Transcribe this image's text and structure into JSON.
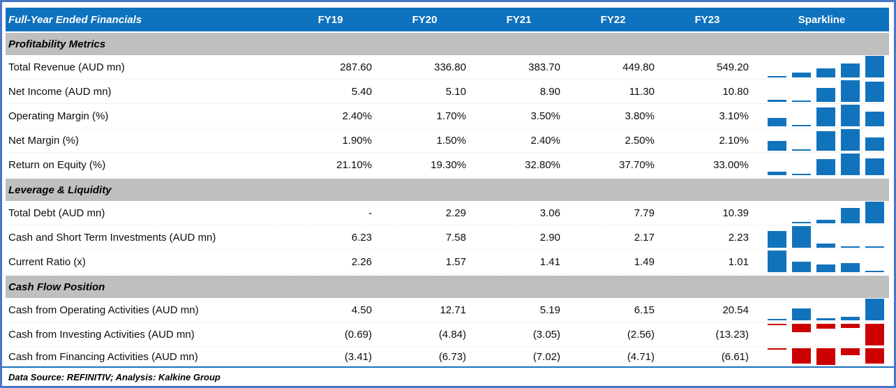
{
  "header": {
    "title": "Full-Year Ended Financials",
    "columns": [
      "FY19",
      "FY20",
      "FY21",
      "FY22",
      "FY23"
    ],
    "sparkline_label": "Sparkline"
  },
  "colors": {
    "frame_border": "#4976C8",
    "header_bg": "#0E72BE",
    "header_text": "#FFFFFF",
    "section_bg": "#BFBFBF",
    "spark_blue": "#1273BD",
    "spark_red": "#CC0000",
    "bottom_rule": "#1B6FC0"
  },
  "table": {
    "sections": [
      {
        "title": "Profitability Metrics",
        "rows": [
          {
            "label": "Total Revenue (AUD mn)",
            "display": [
              "287.60",
              "336.80",
              "383.70",
              "449.80",
              "549.20"
            ],
            "spark": [
              287.6,
              336.8,
              383.7,
              449.8,
              549.2
            ]
          },
          {
            "label": "Net Income (AUD mn)",
            "display": [
              "5.40",
              "5.10",
              "8.90",
              "11.30",
              "10.80"
            ],
            "spark": [
              5.4,
              5.1,
              8.9,
              11.3,
              10.8
            ]
          },
          {
            "label": "Operating Margin (%)",
            "display": [
              "2.40%",
              "1.70%",
              "3.50%",
              "3.80%",
              "3.10%"
            ],
            "spark": [
              2.4,
              1.7,
              3.5,
              3.8,
              3.1
            ]
          },
          {
            "label": "Net Margin (%)",
            "display": [
              "1.90%",
              "1.50%",
              "2.40%",
              "2.50%",
              "2.10%"
            ],
            "spark": [
              1.9,
              1.5,
              2.4,
              2.5,
              2.1
            ]
          },
          {
            "label": "Return on Equity (%)",
            "display": [
              "21.10%",
              "19.30%",
              "32.80%",
              "37.70%",
              "33.00%"
            ],
            "spark": [
              21.1,
              19.3,
              32.8,
              37.7,
              33.0
            ]
          }
        ]
      },
      {
        "title": "Leverage & Liquidity",
        "rows": [
          {
            "label": "Total Debt (AUD mn)",
            "display": [
              "-",
              "2.29",
              "3.06",
              "7.79",
              "10.39"
            ],
            "spark": [
              null,
              2.29,
              3.06,
              7.79,
              10.39
            ]
          },
          {
            "label": "Cash and Short Term Investments (AUD mn)",
            "display": [
              "6.23",
              "7.58",
              "2.90",
              "2.17",
              "2.23"
            ],
            "spark": [
              6.23,
              7.58,
              2.9,
              2.17,
              2.23
            ]
          },
          {
            "label": "Current Ratio (x)",
            "display": [
              "2.26",
              "1.57",
              "1.41",
              "1.49",
              "1.01"
            ],
            "spark": [
              2.26,
              1.57,
              1.41,
              1.49,
              1.01
            ]
          }
        ]
      },
      {
        "title": "Cash Flow Position",
        "rows": [
          {
            "label": "Cash from Operating Activities (AUD mn)",
            "display": [
              "4.50",
              "12.71",
              "5.19",
              "6.15",
              "20.54"
            ],
            "spark": [
              4.5,
              12.71,
              5.19,
              6.15,
              20.54
            ]
          },
          {
            "label": "Cash from Investing Activities (AUD mn)",
            "display": [
              "(0.69)",
              "(4.84)",
              "(3.05)",
              "(2.56)",
              "(13.23)"
            ],
            "spark": [
              -0.69,
              -4.84,
              -3.05,
              -2.56,
              -13.23
            ]
          },
          {
            "label": "Cash from Financing Activities (AUD mn)",
            "display": [
              "(3.41)",
              "(6.73)",
              "(7.02)",
              "(4.71)",
              "(6.61)"
            ],
            "spark": [
              -3.41,
              -6.73,
              -7.02,
              -4.71,
              -6.61
            ]
          }
        ]
      }
    ]
  },
  "footer": {
    "text": "Data Source: REFINITIV; Analysis: Kalkine Group"
  },
  "chart_data": {
    "type": "table",
    "title": "Full-Year Ended Financials",
    "columns": [
      "FY19",
      "FY20",
      "FY21",
      "FY22",
      "FY23"
    ],
    "sparkline_type": "bar",
    "sections": [
      {
        "name": "Profitability Metrics",
        "rows": [
          {
            "label": "Total Revenue (AUD mn)",
            "values": [
              287.6,
              336.8,
              383.7,
              449.8,
              549.2
            ]
          },
          {
            "label": "Net Income (AUD mn)",
            "values": [
              5.4,
              5.1,
              8.9,
              11.3,
              10.8
            ]
          },
          {
            "label": "Operating Margin (%)",
            "values": [
              2.4,
              1.7,
              3.5,
              3.8,
              3.1
            ]
          },
          {
            "label": "Net Margin (%)",
            "values": [
              1.9,
              1.5,
              2.4,
              2.5,
              2.1
            ]
          },
          {
            "label": "Return on Equity (%)",
            "values": [
              21.1,
              19.3,
              32.8,
              37.7,
              33.0
            ]
          }
        ]
      },
      {
        "name": "Leverage & Liquidity",
        "rows": [
          {
            "label": "Total Debt (AUD mn)",
            "values": [
              null,
              2.29,
              3.06,
              7.79,
              10.39
            ]
          },
          {
            "label": "Cash and Short Term Investments (AUD mn)",
            "values": [
              6.23,
              7.58,
              2.9,
              2.17,
              2.23
            ]
          },
          {
            "label": "Current Ratio (x)",
            "values": [
              2.26,
              1.57,
              1.41,
              1.49,
              1.01
            ]
          }
        ]
      },
      {
        "name": "Cash Flow Position",
        "rows": [
          {
            "label": "Cash from Operating Activities (AUD mn)",
            "values": [
              4.5,
              12.71,
              5.19,
              6.15,
              20.54
            ]
          },
          {
            "label": "Cash from Investing Activities (AUD mn)",
            "values": [
              -0.69,
              -4.84,
              -3.05,
              -2.56,
              -13.23
            ]
          },
          {
            "label": "Cash from Financing Activities (AUD mn)",
            "values": [
              -3.41,
              -6.73,
              -7.02,
              -4.71,
              -6.61
            ]
          }
        ]
      }
    ],
    "footnote": "Data Source: REFINITIV; Analysis: Kalkine Group"
  }
}
